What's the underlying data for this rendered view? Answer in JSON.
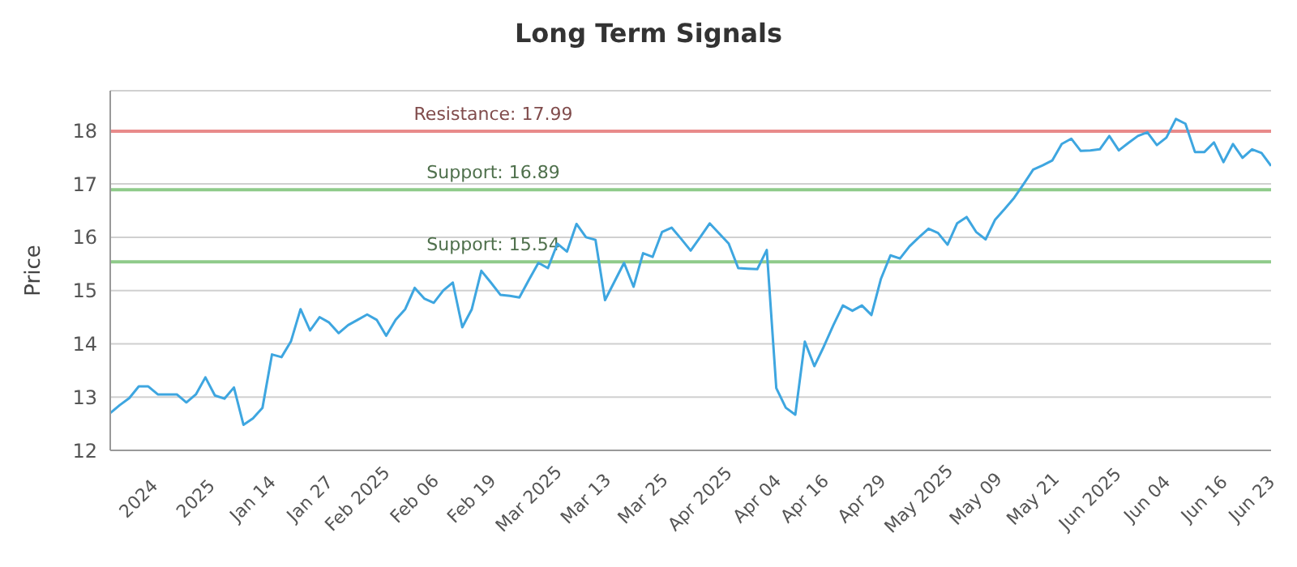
{
  "chart_data": {
    "type": "line",
    "title": "Long Term Signals",
    "ylabel": "Price",
    "categories": [
      null,
      null,
      null,
      "2024",
      null,
      null,
      null,
      null,
      null,
      "2025",
      null,
      null,
      null,
      null,
      null,
      "Jan 14",
      null,
      null,
      null,
      null,
      null,
      "Jan 27",
      null,
      null,
      null,
      null,
      "Feb 2025",
      null,
      null,
      null,
      null,
      null,
      "Feb 06",
      null,
      null,
      null,
      null,
      null,
      "Feb 19",
      null,
      null,
      null,
      null,
      null,
      "Mar 2025",
      null,
      null,
      null,
      null,
      null,
      "Mar 13",
      null,
      null,
      null,
      null,
      null,
      "Mar 25",
      null,
      null,
      null,
      null,
      null,
      "Apr 2025",
      null,
      null,
      null,
      null,
      null,
      "Apr 04",
      null,
      null,
      null,
      null,
      "Apr 16",
      null,
      null,
      null,
      null,
      null,
      "Apr 29",
      null,
      null,
      null,
      null,
      null,
      "May 2025",
      null,
      null,
      null,
      null,
      null,
      "May 09",
      null,
      null,
      null,
      null,
      null,
      "May 21",
      null,
      null,
      null,
      null,
      null,
      "Jun 2025",
      null,
      null,
      null,
      null,
      null,
      "Jun 04",
      null,
      null,
      null,
      null,
      null,
      "Jun 16",
      null,
      null,
      null,
      null,
      "Jun 23",
      null,
      null
    ],
    "series": [
      {
        "color": "#3ea6e0",
        "values": [
          12.7,
          12.85,
          12.98,
          13.2,
          13.2,
          13.05,
          13.05,
          13.05,
          12.9,
          13.05,
          13.37,
          13.03,
          12.97,
          13.18,
          12.48,
          12.6,
          12.8,
          13.8,
          13.75,
          14.05,
          14.65,
          14.25,
          14.5,
          14.4,
          14.2,
          14.35,
          14.45,
          14.55,
          14.45,
          14.15,
          14.45,
          14.65,
          15.05,
          14.85,
          14.77,
          15.0,
          15.15,
          14.31,
          14.65,
          15.37,
          15.15,
          14.92,
          14.9,
          14.87,
          15.2,
          15.52,
          15.42,
          15.88,
          15.73,
          16.25,
          16.0,
          15.95,
          14.82,
          15.17,
          15.52,
          15.07,
          15.7,
          15.63,
          16.1,
          16.18,
          15.97,
          15.75,
          16.0,
          16.26,
          16.07,
          15.88,
          15.42,
          15.41,
          15.4,
          15.76,
          13.17,
          12.8,
          12.67,
          14.04,
          13.58,
          13.95,
          14.35,
          14.72,
          14.62,
          14.72,
          14.54,
          15.22,
          15.66,
          15.6,
          15.83,
          16.0,
          16.16,
          16.08,
          15.86,
          16.26,
          16.38,
          16.1,
          15.96,
          16.33,
          16.53,
          16.74,
          17.0,
          17.27,
          17.35,
          17.44,
          17.75,
          17.85,
          17.62,
          17.63,
          17.65,
          17.9,
          17.63,
          17.77,
          17.9,
          17.97,
          17.73,
          17.87,
          18.22,
          18.13,
          17.6,
          17.6,
          17.78,
          17.41,
          17.75,
          17.49,
          17.65,
          17.58,
          17.34
        ]
      }
    ],
    "ylim": [
      12,
      18.75
    ],
    "yticks": [
      12,
      13,
      14,
      15,
      16,
      17,
      18
    ],
    "grid": "y",
    "marker": "none",
    "line_style": "solid",
    "ref_lines": [
      {
        "axis": "y",
        "value": 17.99,
        "label": "Resistance: 17.99",
        "color": "#e88a8a"
      },
      {
        "axis": "y",
        "value": 16.89,
        "label": "Support: 16.89",
        "color": "#8fcb8a"
      },
      {
        "axis": "y",
        "value": 15.54,
        "label": "Support: 15.54",
        "color": "#8fcb8a"
      }
    ]
  }
}
